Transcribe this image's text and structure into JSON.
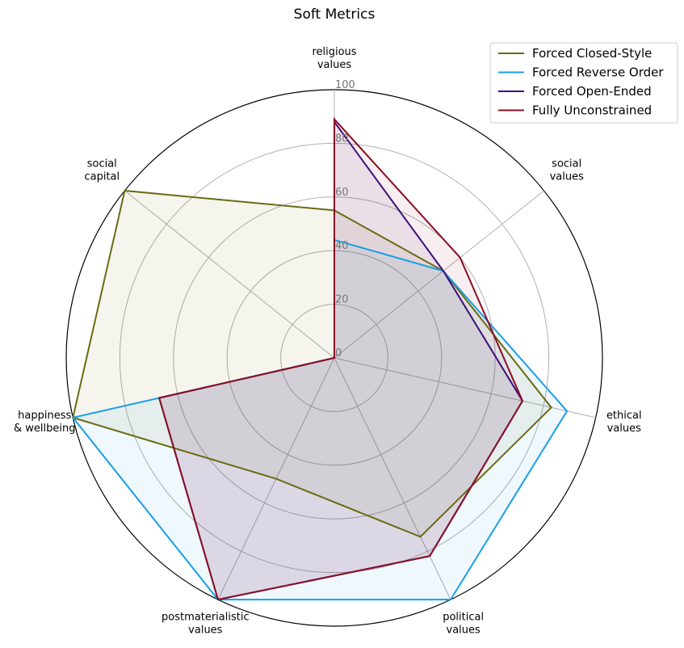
{
  "chart_data": {
    "type": "radar",
    "title": "Soft Metrics",
    "axes": [
      [
        "religious",
        "values"
      ],
      [
        "social",
        "values"
      ],
      [
        "ethical",
        "values"
      ],
      [
        "political",
        "values"
      ],
      [
        "postmaterialistic",
        "values"
      ],
      [
        "happiness",
        "& wellbeing"
      ],
      [
        "social",
        "capital"
      ]
    ],
    "rlim": [
      0,
      100
    ],
    "r_ticks": [
      0,
      20,
      40,
      60,
      80,
      100
    ],
    "grid": true,
    "legend_position": "top-right",
    "series": [
      {
        "name": "Forced Closed-Style",
        "color": "#6b6b12",
        "values": [
          55,
          52,
          83,
          74,
          50,
          100,
          100
        ]
      },
      {
        "name": "Forced Reverse Order",
        "color": "#199fe6",
        "values": [
          44,
          52,
          89,
          100,
          100,
          100,
          0
        ]
      },
      {
        "name": "Forced Open-Ended",
        "color": "#3d0f7a",
        "values": [
          88,
          52,
          72,
          82,
          100,
          67,
          0
        ]
      },
      {
        "name": "Fully Unconstrained",
        "color": "#8a0e24",
        "values": [
          89,
          60,
          72,
          82,
          100,
          67,
          0
        ]
      }
    ]
  }
}
